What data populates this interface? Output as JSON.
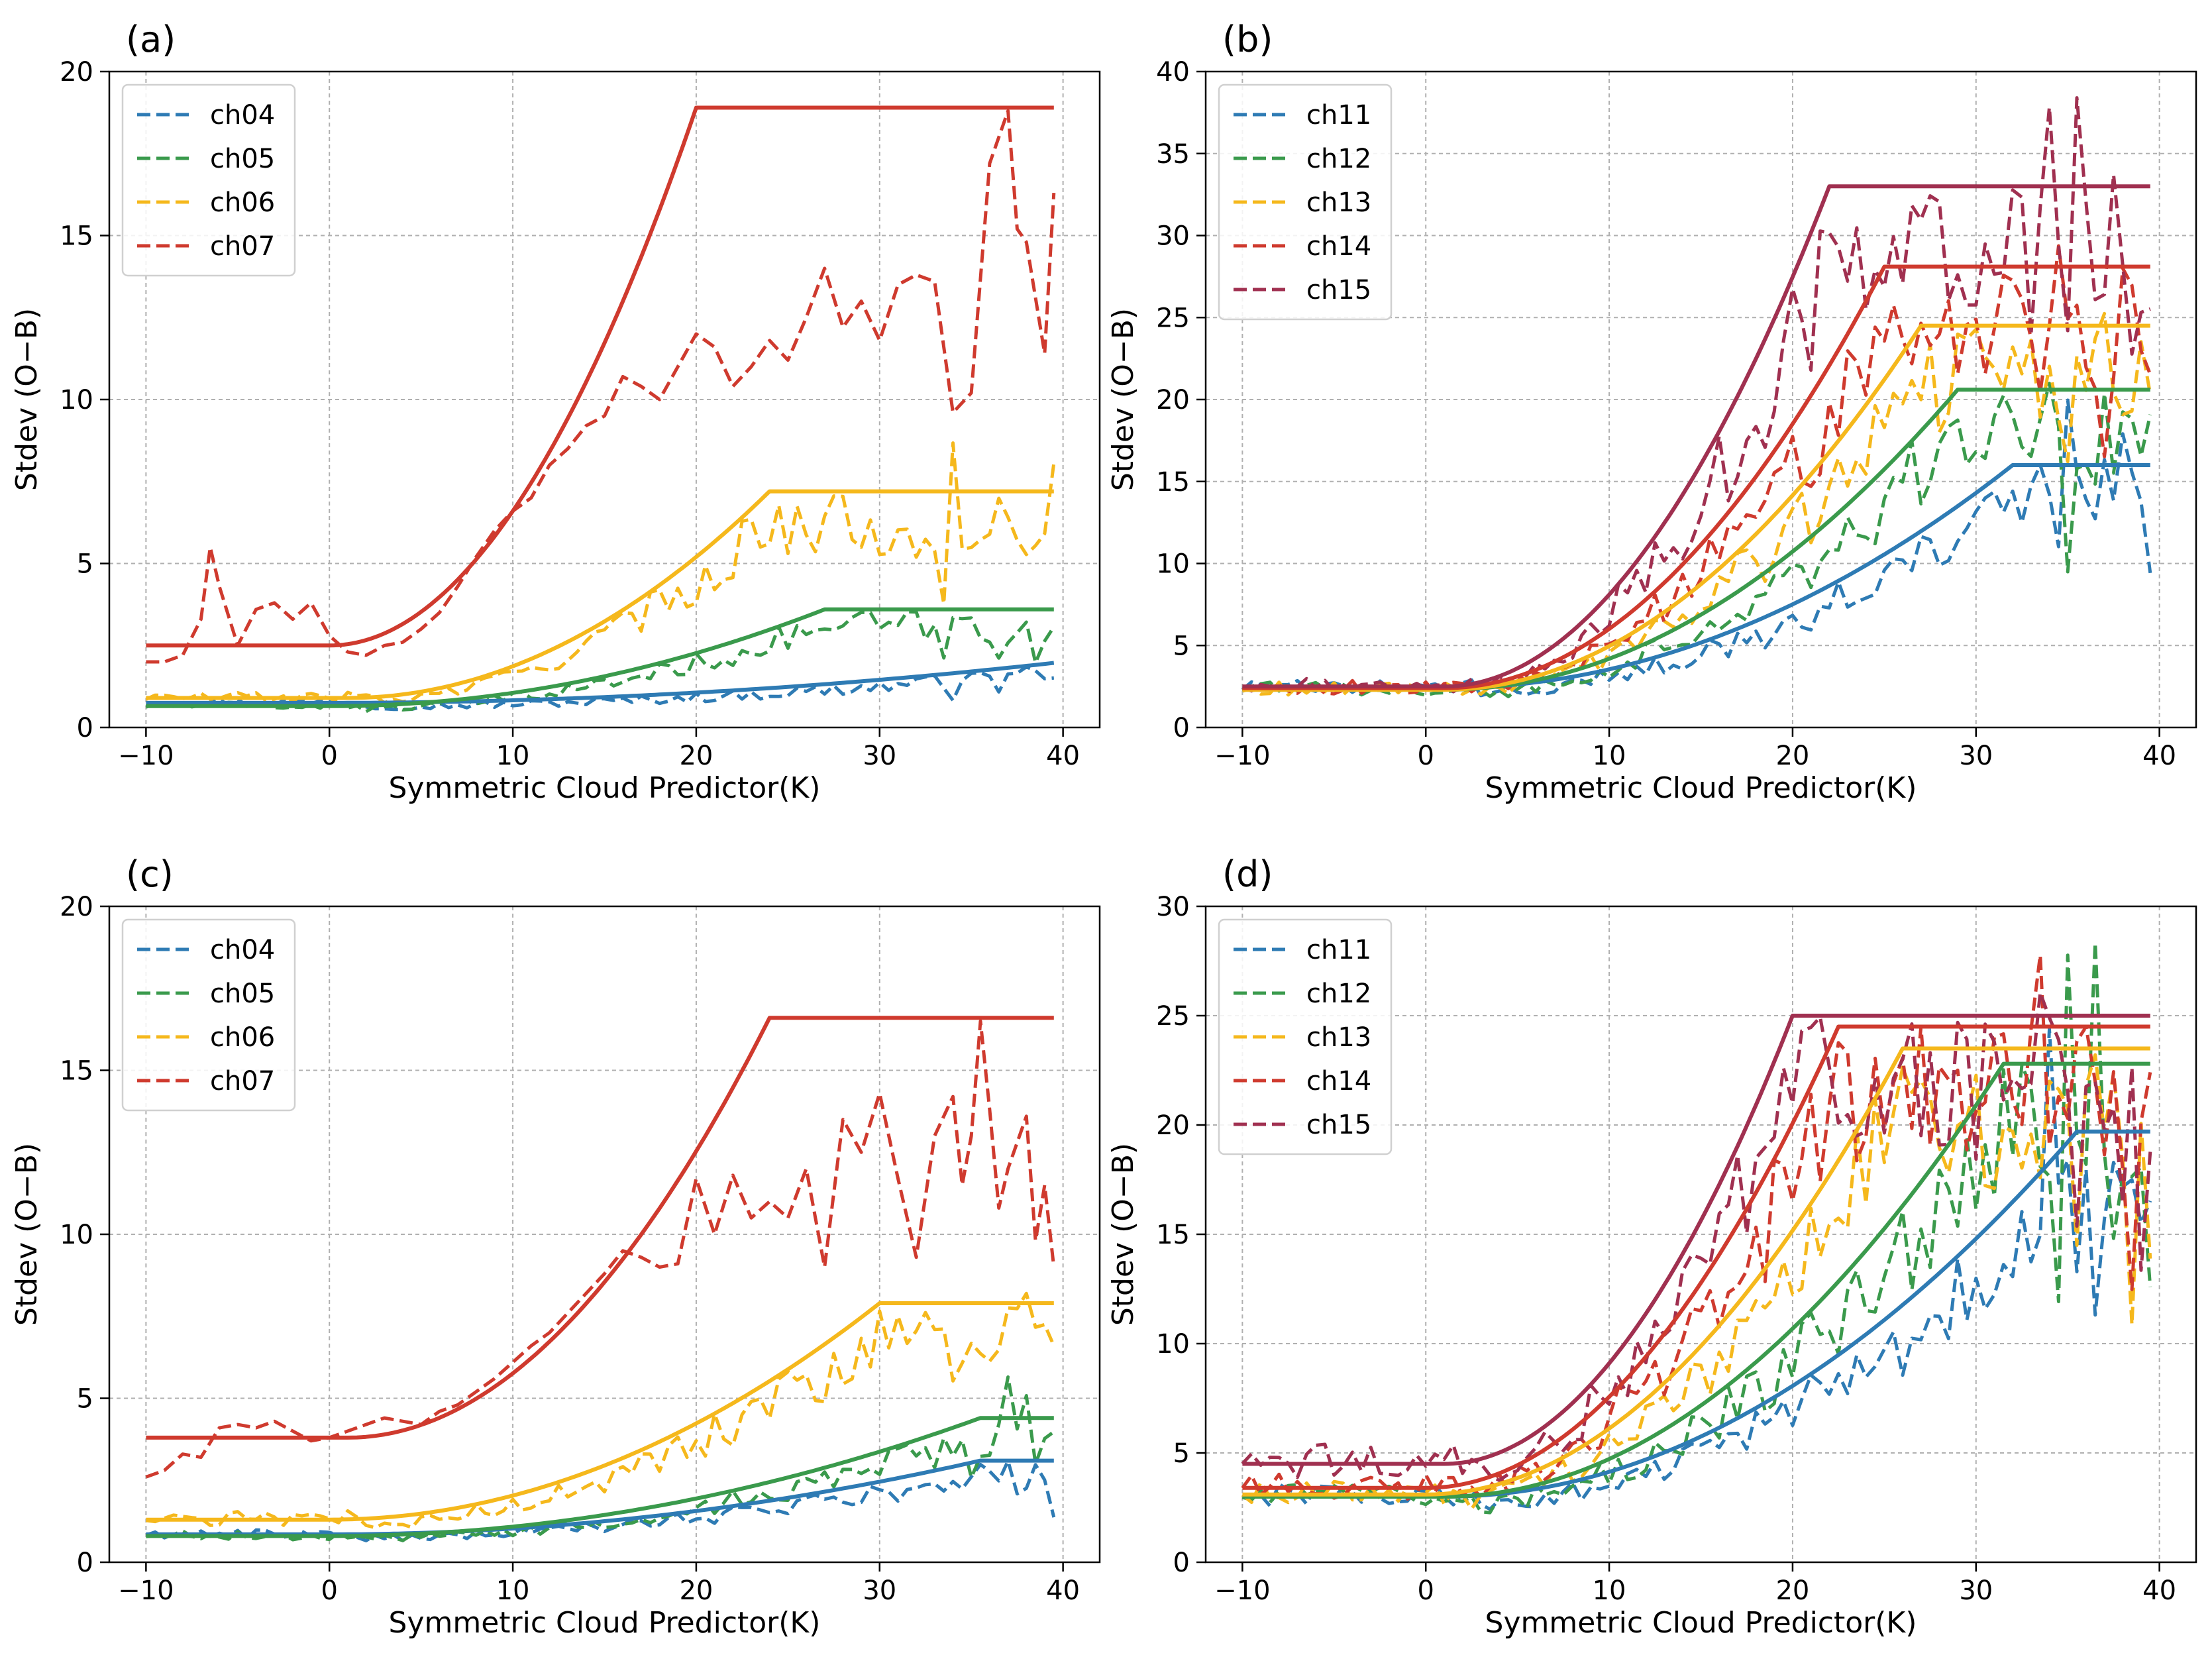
{
  "chart_data": [
    {
      "panel": "(a)",
      "type": "line",
      "xlabel": "Symmetric Cloud Predictor(K)",
      "ylabel": "Stdev (O−B)",
      "xlim": [
        -12,
        42
      ],
      "ylim": [
        0,
        20
      ],
      "xticks": [
        -10,
        0,
        10,
        20,
        30,
        40
      ],
      "xtick_labels": [
        "−10",
        "0",
        "10",
        "20",
        "30",
        "40"
      ],
      "yticks": [
        0,
        5,
        10,
        15,
        20
      ],
      "ytick_labels": [
        "0",
        "5",
        "10",
        "15",
        "20"
      ],
      "grid": true,
      "legend_position": "top-left",
      "series": [
        {
          "name": "ch04",
          "color": "#2e7bb4",
          "fit": {
            "low": 0.75,
            "high": 2.0,
            "c1": 0,
            "c2": 40
          }
        },
        {
          "name": "ch05",
          "color": "#3a9a4c",
          "fit": {
            "low": 0.65,
            "high": 3.6,
            "c1": 0,
            "c2": 27
          }
        },
        {
          "name": "ch06",
          "color": "#f5b81c",
          "fit": {
            "low": 0.9,
            "high": 7.2,
            "c1": 1,
            "c2": 24
          }
        },
        {
          "name": "ch07",
          "color": "#cf3a2e",
          "fit": {
            "low": 2.5,
            "high": 18.9,
            "c1": 0,
            "c2": 20
          },
          "dashed_override": [
            [
              -10,
              2.0
            ],
            [
              -9,
              2.0
            ],
            [
              -8,
              2.2
            ],
            [
              -7,
              3.3
            ],
            [
              -6.5,
              5.5
            ],
            [
              -6,
              4.3
            ],
            [
              -5,
              2.5
            ],
            [
              -4,
              3.6
            ],
            [
              -3,
              3.8
            ],
            [
              -2,
              3.3
            ],
            [
              -1,
              3.8
            ],
            [
              0,
              2.8
            ],
            [
              1,
              2.3
            ],
            [
              2,
              2.2
            ],
            [
              3,
              2.5
            ],
            [
              4,
              2.6
            ],
            [
              5,
              3.0
            ],
            [
              6,
              3.5
            ],
            [
              7,
              4.3
            ],
            [
              8,
              5.2
            ],
            [
              9,
              6.0
            ],
            [
              10,
              6.6
            ],
            [
              11,
              7.0
            ],
            [
              12,
              8.0
            ],
            [
              13,
              8.5
            ],
            [
              14,
              9.2
            ],
            [
              15,
              9.5
            ],
            [
              16,
              10.7
            ],
            [
              17,
              10.4
            ],
            [
              18,
              10.0
            ],
            [
              19,
              11.0
            ],
            [
              20,
              12.0
            ],
            [
              21,
              11.6
            ],
            [
              22,
              10.4
            ],
            [
              23,
              11.0
            ],
            [
              24,
              11.8
            ],
            [
              25,
              11.2
            ],
            [
              26,
              12.5
            ],
            [
              27,
              14.0
            ],
            [
              28,
              12.2
            ],
            [
              29,
              13.0
            ],
            [
              30,
              11.8
            ],
            [
              31,
              13.5
            ],
            [
              32,
              13.8
            ],
            [
              33,
              13.6
            ],
            [
              34,
              9.6
            ],
            [
              35,
              10.2
            ],
            [
              36,
              17.2
            ],
            [
              37,
              18.8
            ],
            [
              37.5,
              15.2
            ],
            [
              38,
              14.8
            ],
            [
              39,
              11.4
            ],
            [
              39.5,
              16.3
            ]
          ]
        }
      ]
    },
    {
      "panel": "(b)",
      "type": "line",
      "xlabel": "Symmetric Cloud Predictor(K)",
      "ylabel": "Stdev (O−B)",
      "xlim": [
        -12,
        42
      ],
      "ylim": [
        0,
        40
      ],
      "xticks": [
        -10,
        0,
        10,
        20,
        30,
        40
      ],
      "xtick_labels": [
        "−10",
        "0",
        "10",
        "20",
        "30",
        "40"
      ],
      "yticks": [
        0,
        5,
        10,
        15,
        20,
        25,
        30,
        35,
        40
      ],
      "ytick_labels": [
        "0",
        "5",
        "10",
        "15",
        "20",
        "25",
        "30",
        "35",
        "40"
      ],
      "grid": true,
      "legend_position": "top-left",
      "series": [
        {
          "name": "ch11",
          "color": "#2e7bb4",
          "fit": {
            "low": 2.4,
            "high": 16.0,
            "c1": 1,
            "c2": 32
          }
        },
        {
          "name": "ch12",
          "color": "#3a9a4c",
          "fit": {
            "low": 2.3,
            "high": 20.6,
            "c1": 1,
            "c2": 29
          }
        },
        {
          "name": "ch13",
          "color": "#f5b81c",
          "fit": {
            "low": 2.3,
            "high": 24.5,
            "c1": 1,
            "c2": 27
          }
        },
        {
          "name": "ch14",
          "color": "#cf3a2e",
          "fit": {
            "low": 2.4,
            "high": 28.1,
            "c1": 1,
            "c2": 25
          }
        },
        {
          "name": "ch15",
          "color": "#a03050",
          "fit": {
            "low": 2.5,
            "high": 33.0,
            "c1": 1,
            "c2": 22
          }
        }
      ]
    },
    {
      "panel": "(c)",
      "type": "line",
      "xlabel": "Symmetric Cloud Predictor(K)",
      "ylabel": "Stdev (O−B)",
      "xlim": [
        -12,
        42
      ],
      "ylim": [
        0,
        20
      ],
      "xticks": [
        -10,
        0,
        10,
        20,
        30,
        40
      ],
      "xtick_labels": [
        "−10",
        "0",
        "10",
        "20",
        "30",
        "40"
      ],
      "yticks": [
        0,
        5,
        10,
        15,
        20
      ],
      "ytick_labels": [
        "0",
        "5",
        "10",
        "15",
        "20"
      ],
      "grid": true,
      "legend_position": "top-left",
      "series": [
        {
          "name": "ch04",
          "color": "#2e7bb4",
          "fit": {
            "low": 0.85,
            "high": 3.1,
            "c1": 0,
            "c2": 35.5
          }
        },
        {
          "name": "ch05",
          "color": "#3a9a4c",
          "fit": {
            "low": 0.8,
            "high": 4.4,
            "c1": 0,
            "c2": 35.5
          }
        },
        {
          "name": "ch06",
          "color": "#f5b81c",
          "fit": {
            "low": 1.3,
            "high": 7.9,
            "c1": 0,
            "c2": 30
          }
        },
        {
          "name": "ch07",
          "color": "#cf3a2e",
          "fit": {
            "low": 3.8,
            "high": 16.6,
            "c1": 1,
            "c2": 24
          },
          "dashed_override": [
            [
              -10,
              2.6
            ],
            [
              -9,
              2.8
            ],
            [
              -8,
              3.3
            ],
            [
              -7,
              3.2
            ],
            [
              -6,
              4.1
            ],
            [
              -5,
              4.2
            ],
            [
              -4,
              4.1
            ],
            [
              -3,
              4.3
            ],
            [
              -2,
              4.0
            ],
            [
              -1,
              3.7
            ],
            [
              0,
              3.8
            ],
            [
              1,
              4.0
            ],
            [
              2,
              4.2
            ],
            [
              3,
              4.4
            ],
            [
              4,
              4.3
            ],
            [
              5,
              4.2
            ],
            [
              6,
              4.6
            ],
            [
              7,
              4.8
            ],
            [
              8,
              5.2
            ],
            [
              9,
              5.6
            ],
            [
              10,
              6.1
            ],
            [
              11,
              6.6
            ],
            [
              12,
              7.0
            ],
            [
              13,
              7.6
            ],
            [
              14,
              8.2
            ],
            [
              15,
              8.8
            ],
            [
              16,
              9.5
            ],
            [
              17,
              9.3
            ],
            [
              18,
              9.0
            ],
            [
              19,
              9.1
            ],
            [
              20,
              11.7
            ],
            [
              21,
              10.0
            ],
            [
              22,
              11.8
            ],
            [
              23,
              10.5
            ],
            [
              24,
              11.0
            ],
            [
              25,
              10.5
            ],
            [
              26,
              12.0
            ],
            [
              27,
              9.0
            ],
            [
              28,
              13.5
            ],
            [
              29,
              12.5
            ],
            [
              30,
              14.3
            ],
            [
              31,
              11.7
            ],
            [
              32,
              9.3
            ],
            [
              33,
              13.0
            ],
            [
              34,
              14.2
            ],
            [
              34.5,
              11.5
            ],
            [
              35,
              13.0
            ],
            [
              35.5,
              16.5
            ],
            [
              36,
              13.8
            ],
            [
              36.5,
              10.8
            ],
            [
              37,
              12.0
            ],
            [
              38,
              13.6
            ],
            [
              38.5,
              9.8
            ],
            [
              39,
              11.5
            ],
            [
              39.5,
              9.0
            ]
          ]
        }
      ]
    },
    {
      "panel": "(d)",
      "type": "line",
      "xlabel": "Symmetric Cloud Predictor(K)",
      "ylabel": "Stdev (O−B)",
      "xlim": [
        -12,
        42
      ],
      "ylim": [
        0,
        30
      ],
      "xticks": [
        -10,
        0,
        10,
        20,
        30,
        40
      ],
      "xtick_labels": [
        "−10",
        "0",
        "10",
        "20",
        "30",
        "40"
      ],
      "yticks": [
        0,
        5,
        10,
        15,
        20,
        25,
        30
      ],
      "ytick_labels": [
        "0",
        "5",
        "10",
        "15",
        "20",
        "25",
        "30"
      ],
      "grid": true,
      "legend_position": "top-left",
      "series": [
        {
          "name": "ch11",
          "color": "#2e7bb4",
          "fit": {
            "low": 3.0,
            "high": 19.7,
            "c1": 1,
            "c2": 35.5
          }
        },
        {
          "name": "ch12",
          "color": "#3a9a4c",
          "fit": {
            "low": 3.0,
            "high": 22.8,
            "c1": 1,
            "c2": 31.5
          }
        },
        {
          "name": "ch13",
          "color": "#f5b81c",
          "fit": {
            "low": 3.1,
            "high": 23.5,
            "c1": 0,
            "c2": 26
          }
        },
        {
          "name": "ch14",
          "color": "#cf3a2e",
          "fit": {
            "low": 3.4,
            "high": 24.5,
            "c1": 0,
            "c2": 22.5
          }
        },
        {
          "name": "ch15",
          "color": "#a03050",
          "fit": {
            "low": 4.5,
            "high": 25.0,
            "c1": 1,
            "c2": 20
          }
        }
      ]
    }
  ]
}
